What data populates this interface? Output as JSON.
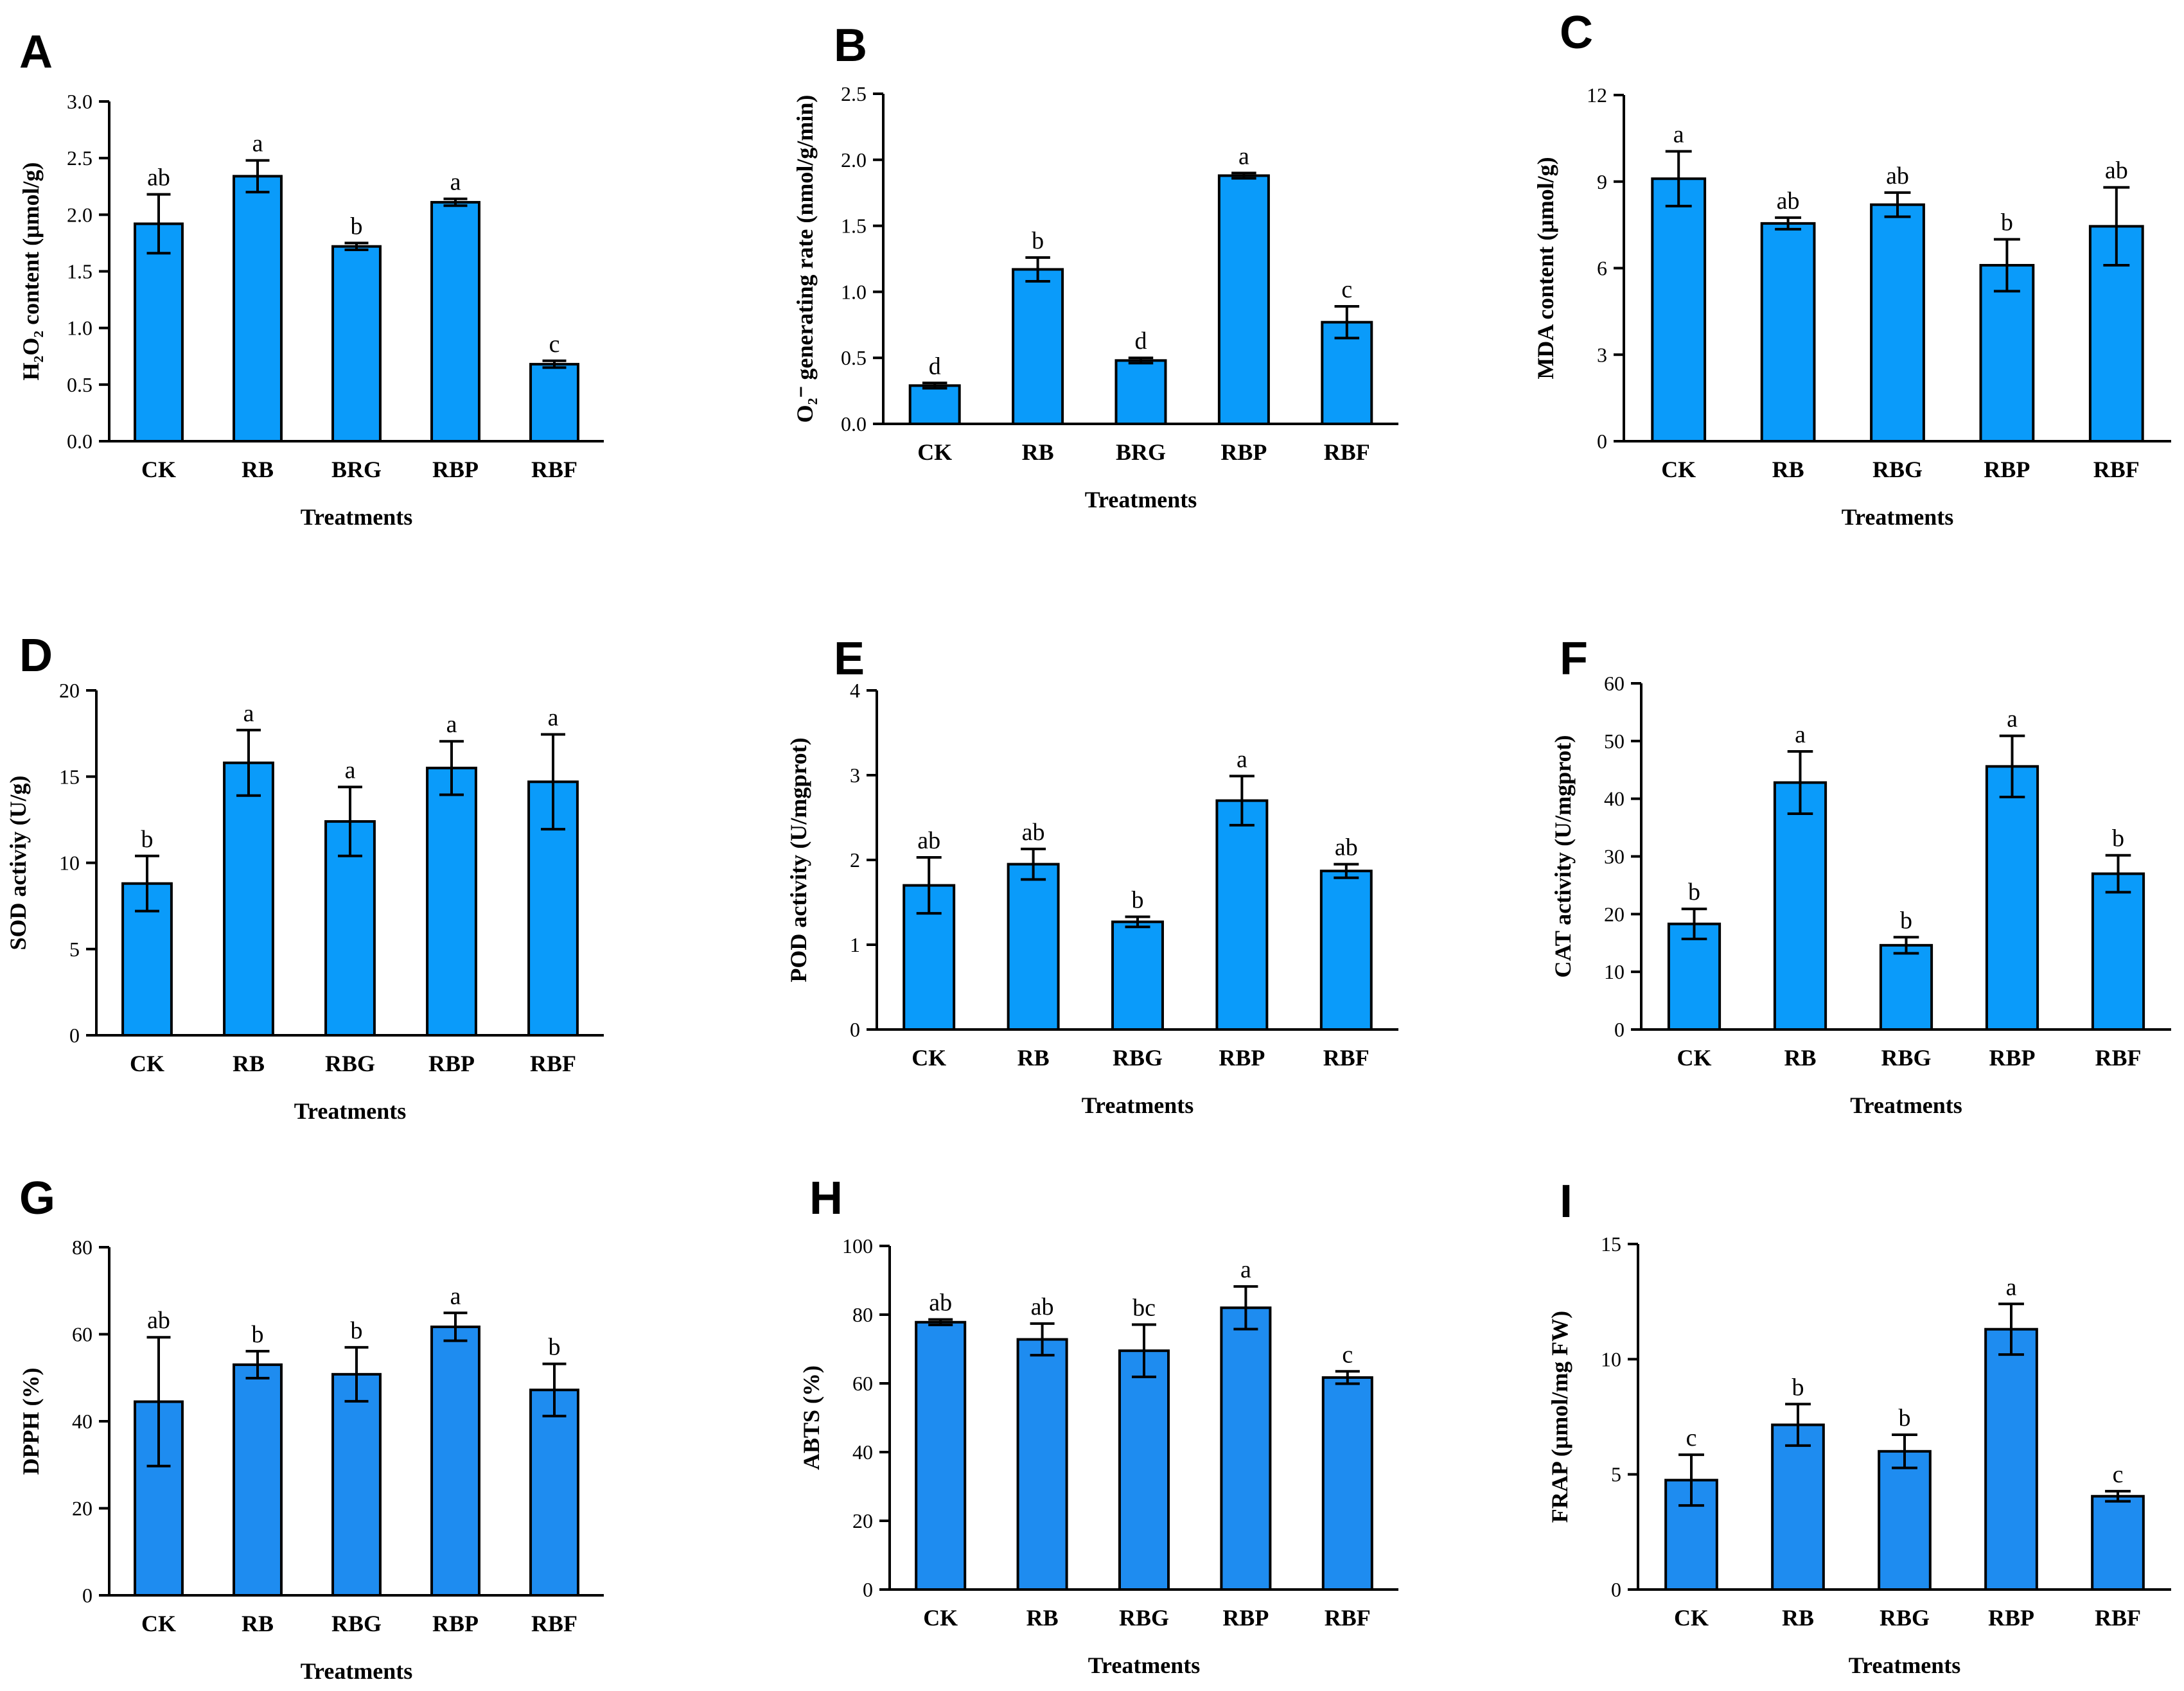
{
  "colors": {
    "bar_fill": "#0A9BFA",
    "bar_fill_alt": "#1E8CF0",
    "stroke": "#000000"
  },
  "chart_data": [
    {
      "panel": "A",
      "type": "bar",
      "xlabel": "Treatments",
      "ylabel": "H₂O₂ content (μmol/g)",
      "categories": [
        "CK",
        "RB",
        "BRG",
        "RBP",
        "RBF"
      ],
      "values": [
        1.92,
        2.34,
        1.72,
        2.11,
        0.68
      ],
      "errors": [
        0.26,
        0.14,
        0.03,
        0.03,
        0.03
      ],
      "significance": [
        "ab",
        "a",
        "b",
        "a",
        "c"
      ],
      "ylim": [
        0,
        3.0
      ],
      "yticks": [
        "0.0",
        "0.5",
        "1.0",
        "1.5",
        "2.0",
        "2.5",
        "3.0"
      ]
    },
    {
      "panel": "B",
      "type": "bar",
      "xlabel": "Treatments",
      "ylabel": "O₂⁻ generating rate (nmol/g/min)",
      "categories": [
        "CK",
        "RB",
        "BRG",
        "RBP",
        "RBF"
      ],
      "values": [
        0.29,
        1.17,
        0.48,
        1.88,
        0.77
      ],
      "errors": [
        0.02,
        0.09,
        0.02,
        0.02,
        0.12
      ],
      "significance": [
        "d",
        "b",
        "d",
        "a",
        "c"
      ],
      "ylim": [
        0,
        2.5
      ],
      "yticks": [
        "0.0",
        "0.5",
        "1.0",
        "1.5",
        "2.0",
        "2.5"
      ]
    },
    {
      "panel": "C",
      "type": "bar",
      "xlabel": "Treatments",
      "ylabel": "MDA content (μmol/g)",
      "categories": [
        "CK",
        "RB",
        "RBG",
        "RBP",
        "RBF"
      ],
      "values": [
        9.1,
        7.55,
        8.2,
        6.1,
        7.45
      ],
      "errors": [
        0.95,
        0.2,
        0.42,
        0.9,
        1.35
      ],
      "significance": [
        "a",
        "ab",
        "ab",
        "b",
        "ab"
      ],
      "ylim": [
        0,
        12
      ],
      "yticks": [
        "0",
        "3",
        "6",
        "9",
        "12"
      ]
    },
    {
      "panel": "D",
      "type": "bar",
      "xlabel": "Treatments",
      "ylabel": "SOD activiy (U/g)",
      "categories": [
        "CK",
        "RB",
        "RBG",
        "RBP",
        "RBF"
      ],
      "values": [
        8.8,
        15.8,
        12.4,
        15.5,
        14.7
      ],
      "errors": [
        1.6,
        1.9,
        2.0,
        1.55,
        2.75
      ],
      "significance": [
        "b",
        "a",
        "a",
        "a",
        "a"
      ],
      "ylim": [
        0,
        20
      ],
      "yticks": [
        "0",
        "5",
        "10",
        "15",
        "20"
      ]
    },
    {
      "panel": "E",
      "type": "bar",
      "xlabel": "Treatments",
      "ylabel": "POD activity (U/mgprot)",
      "categories": [
        "CK",
        "RB",
        "RBG",
        "RBP",
        "RBF"
      ],
      "values": [
        1.7,
        1.95,
        1.27,
        2.7,
        1.87
      ],
      "errors": [
        0.33,
        0.18,
        0.06,
        0.29,
        0.08
      ],
      "significance": [
        "ab",
        "ab",
        "b",
        "a",
        "ab"
      ],
      "ylim": [
        0,
        4
      ],
      "yticks": [
        "0",
        "1",
        "2",
        "3",
        "4"
      ]
    },
    {
      "panel": "F",
      "type": "bar",
      "xlabel": "Treatments",
      "ylabel": "CAT activity (U/mgprot)",
      "categories": [
        "CK",
        "RB",
        "RBG",
        "RBP",
        "RBF"
      ],
      "values": [
        18.3,
        42.8,
        14.6,
        45.6,
        27.0
      ],
      "errors": [
        2.6,
        5.4,
        1.4,
        5.3,
        3.2
      ],
      "significance": [
        "b",
        "a",
        "b",
        "a",
        "b"
      ],
      "ylim": [
        0,
        60
      ],
      "yticks": [
        "0",
        "10",
        "20",
        "30",
        "40",
        "50",
        "60"
      ]
    },
    {
      "panel": "G",
      "type": "bar",
      "xlabel": "Treatments",
      "ylabel": "DPPH (%)",
      "categories": [
        "CK",
        "RB",
        "RBG",
        "RBP",
        "RBF"
      ],
      "values": [
        44.5,
        53.0,
        50.8,
        61.7,
        47.2
      ],
      "errors": [
        14.8,
        3.1,
        6.2,
        3.2,
        6.0
      ],
      "significance": [
        "ab",
        "b",
        "b",
        "a",
        "b"
      ],
      "ylim": [
        0,
        80
      ],
      "yticks": [
        "0",
        "20",
        "40",
        "60",
        "80"
      ]
    },
    {
      "panel": "H",
      "type": "bar",
      "xlabel": "Treatments",
      "ylabel": "ABTS (%)",
      "categories": [
        "CK",
        "RB",
        "RBG",
        "RBP",
        "RBF"
      ],
      "values": [
        77.8,
        72.8,
        69.5,
        82.0,
        61.7
      ],
      "errors": [
        0.8,
        4.6,
        7.6,
        6.2,
        1.8
      ],
      "significance": [
        "ab",
        "ab",
        "bc",
        "a",
        "c"
      ],
      "ylim": [
        0,
        100
      ],
      "yticks": [
        "0",
        "20",
        "40",
        "60",
        "80",
        "100"
      ]
    },
    {
      "panel": "I",
      "type": "bar",
      "xlabel": "Treatments",
      "ylabel": "FRAP (μmol/mg FW)",
      "categories": [
        "CK",
        "RB",
        "RBG",
        "RBP",
        "RBF"
      ],
      "values": [
        4.75,
        7.15,
        6.0,
        11.3,
        4.05
      ],
      "errors": [
        1.1,
        0.9,
        0.72,
        1.1,
        0.22
      ],
      "significance": [
        "c",
        "b",
        "b",
        "a",
        "c"
      ],
      "ylim": [
        0,
        15
      ],
      "yticks": [
        "0",
        "5",
        "10",
        "15"
      ]
    }
  ]
}
